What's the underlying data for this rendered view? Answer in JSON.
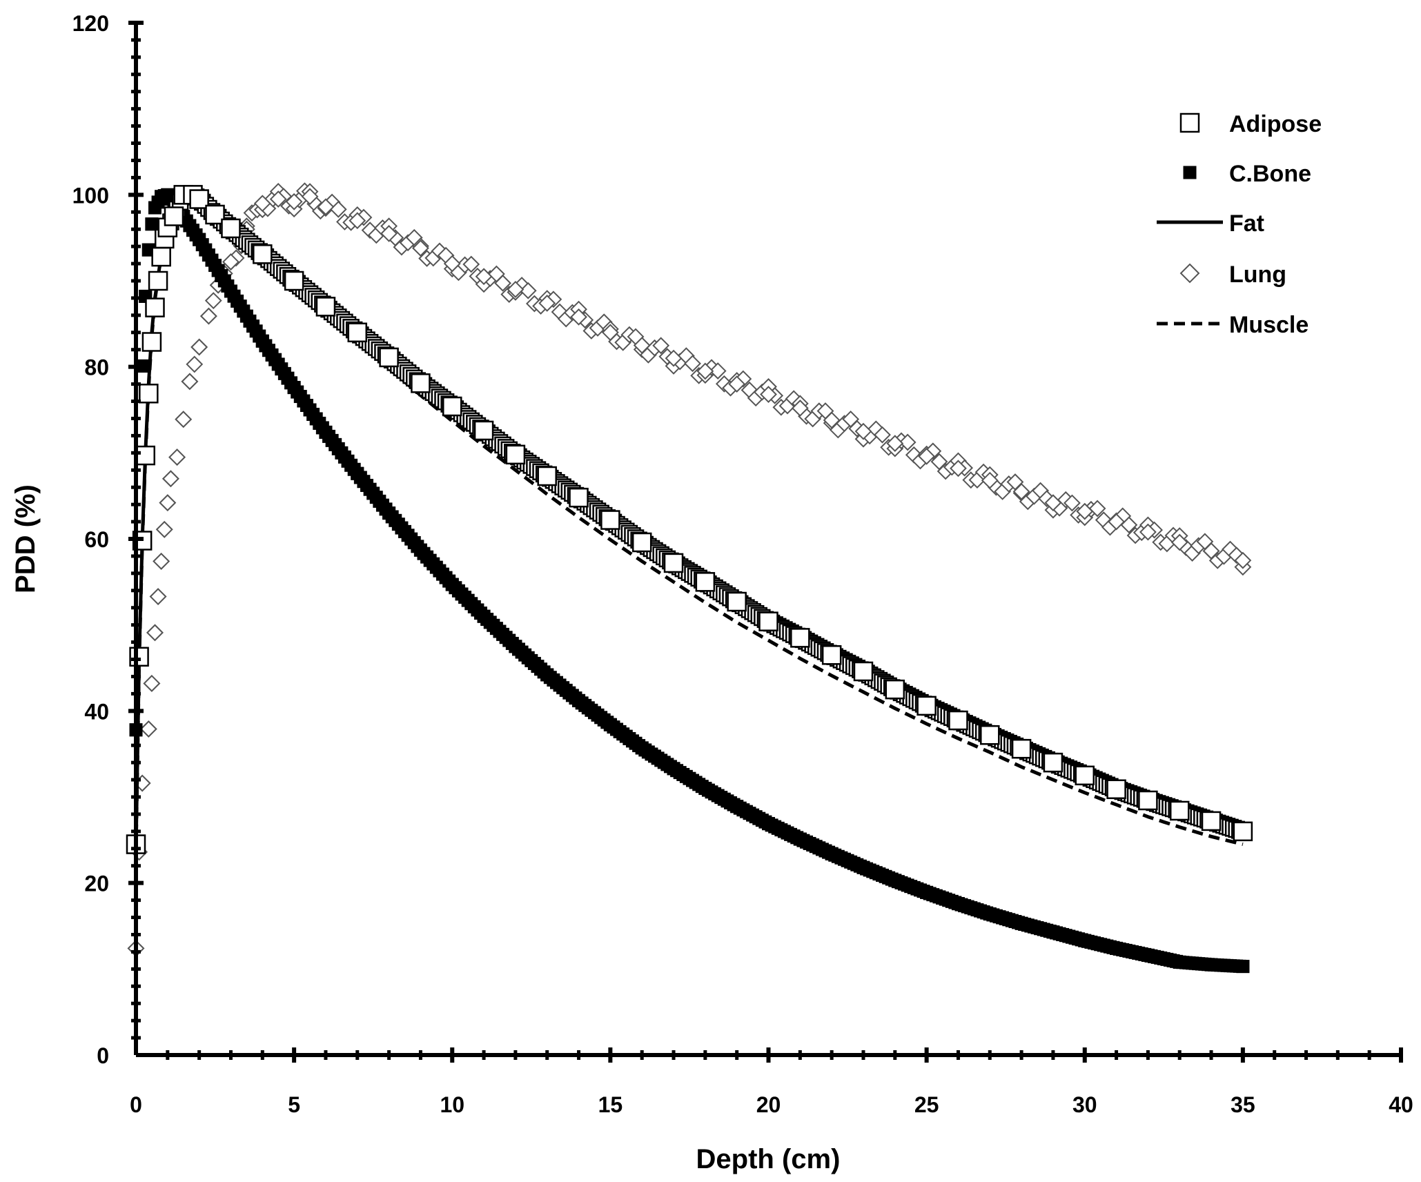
{
  "chart_data": {
    "type": "scatter",
    "title": "",
    "xlabel": "Depth (cm)",
    "ylabel": "PDD (%)",
    "xlim": [
      0,
      40
    ],
    "ylim": [
      0,
      120
    ],
    "xticks": [
      0,
      5,
      10,
      15,
      20,
      25,
      30,
      35,
      40
    ],
    "yticks": [
      0,
      20,
      40,
      60,
      80,
      100,
      120
    ],
    "legend_position": "top-right",
    "grid": false,
    "series": [
      {
        "name": "Adipose",
        "style": "open-square",
        "x": [
          0,
          0.1,
          0.2,
          0.3,
          0.4,
          0.5,
          0.6,
          0.7,
          0.8,
          0.9,
          1.0,
          1.2,
          1.5,
          1.8,
          2.0,
          2.5,
          3,
          4,
          5,
          6,
          7,
          8,
          9,
          10,
          11,
          12,
          13,
          14,
          15,
          16,
          17,
          18,
          19,
          20,
          21,
          22,
          23,
          24,
          25,
          26,
          27,
          28,
          29,
          30,
          31,
          32,
          33,
          34,
          35
        ],
        "y": [
          24.5,
          46.3,
          59.8,
          69.7,
          76.9,
          82.9,
          86.9,
          90.0,
          92.8,
          94.9,
          96.2,
          97.5,
          100.0,
          100.0,
          99.5,
          97.7,
          96.1,
          93.1,
          90.0,
          87.0,
          84.0,
          81.1,
          78.1,
          75.4,
          72.6,
          69.8,
          67.3,
          64.8,
          62.2,
          59.6,
          57.2,
          55.0,
          52.7,
          50.4,
          48.5,
          46.5,
          44.6,
          42.5,
          40.6,
          38.9,
          37.2,
          35.6,
          34.0,
          32.5,
          30.9,
          29.6,
          28.4,
          27.2,
          26.0
        ]
      },
      {
        "name": "C.Bone",
        "style": "filled-square",
        "x": [
          0,
          0.1,
          0.2,
          0.3,
          0.4,
          0.5,
          0.6,
          0.8,
          1.0,
          1.2,
          1.5,
          2,
          3,
          4,
          5,
          6,
          7,
          8,
          9,
          10,
          11,
          12,
          13,
          14,
          15,
          16,
          17,
          18,
          19,
          20,
          21,
          22,
          23,
          24,
          25,
          26,
          27,
          28,
          29,
          30,
          31,
          32,
          33,
          34,
          35
        ],
        "y": [
          37.8,
          60.1,
          80.1,
          88.2,
          93.6,
          96.6,
          98.5,
          99.8,
          100.0,
          99.0,
          97.5,
          94.8,
          88.8,
          83.0,
          77.6,
          72.4,
          67.6,
          63.0,
          58.7,
          54.7,
          51.0,
          47.5,
          44.2,
          41.2,
          38.4,
          35.7,
          33.3,
          31.0,
          28.9,
          26.9,
          25.1,
          23.4,
          21.8,
          20.3,
          18.9,
          17.6,
          16.4,
          15.3,
          14.3,
          13.3,
          12.4,
          11.6,
          10.8,
          10.5,
          10.3
        ]
      },
      {
        "name": "Fat",
        "style": "solid-line",
        "x": [
          0,
          0.1,
          0.2,
          0.3,
          0.4,
          0.5,
          0.6,
          0.8,
          1.0,
          1.3,
          1.6,
          2,
          3,
          4,
          5,
          6,
          7,
          8,
          9,
          10,
          11,
          12,
          13,
          14,
          15,
          16,
          17,
          18,
          19,
          20,
          21,
          22,
          23,
          24,
          25,
          26,
          27,
          28,
          29,
          30,
          31,
          32,
          33,
          34,
          35
        ],
        "y": [
          24.0,
          46.0,
          60.0,
          70.0,
          78.0,
          84.0,
          88.0,
          93.0,
          96.5,
          98.5,
          99.5,
          99.2,
          96.5,
          93.0,
          90.0,
          87.0,
          84.0,
          81.0,
          78.0,
          75.0,
          72.0,
          69.4,
          66.7,
          64.2,
          61.6,
          59.0,
          56.6,
          54.3,
          52.0,
          49.8,
          47.8,
          45.8,
          43.9,
          41.9,
          40.0,
          38.3,
          36.6,
          35.0,
          33.4,
          31.9,
          30.4,
          29.1,
          27.9,
          26.7,
          25.5
        ]
      },
      {
        "name": "Lung",
        "style": "open-diamond",
        "x": [
          0,
          0.1,
          0.2,
          0.4,
          0.5,
          0.6,
          0.7,
          0.8,
          0.9,
          1.0,
          1.1,
          1.3,
          1.5,
          1.7,
          2.0,
          2.3,
          2.6,
          3,
          3.5,
          4,
          4.5,
          5,
          5.5,
          6,
          7,
          8,
          9,
          10,
          11,
          12,
          13,
          14,
          15,
          16,
          17,
          18,
          19,
          20,
          21,
          22,
          23,
          24,
          25,
          26,
          27,
          28,
          29,
          30,
          31,
          32,
          33,
          34,
          35
        ],
        "y": [
          12.4,
          23.6,
          31.6,
          37.9,
          43.2,
          49.1,
          53.3,
          57.4,
          61.1,
          64.2,
          67.0,
          69.5,
          73.9,
          78.3,
          82.3,
          85.9,
          89.5,
          92.2,
          96.0,
          99.0,
          99.5,
          99.2,
          99.8,
          98.6,
          97.0,
          95.5,
          93.8,
          92.0,
          90.5,
          89.0,
          87.4,
          85.8,
          84.0,
          82.5,
          81.0,
          79.5,
          78.0,
          76.8,
          75.2,
          73.8,
          72.5,
          71.1,
          69.6,
          68.2,
          66.8,
          65.5,
          64.2,
          63.2,
          62.0,
          60.8,
          59.6,
          58.6,
          57.5
        ]
      },
      {
        "name": "Muscle",
        "style": "dashed-line",
        "x": [
          0,
          0.1,
          0.2,
          0.3,
          0.4,
          0.5,
          0.6,
          0.8,
          1.0,
          1.3,
          1.6,
          2,
          3,
          4,
          5,
          6,
          7,
          8,
          9,
          10,
          11,
          12,
          13,
          14,
          15,
          16,
          17,
          18,
          19,
          20,
          21,
          22,
          23,
          24,
          25,
          26,
          27,
          28,
          29,
          30,
          31,
          32,
          33,
          34,
          35
        ],
        "y": [
          23.5,
          45.5,
          59.5,
          69.5,
          77.5,
          83.5,
          87.8,
          93.0,
          96.5,
          98.8,
          99.8,
          99.0,
          96.0,
          92.5,
          89.3,
          86.0,
          83.0,
          79.8,
          76.7,
          73.7,
          70.8,
          68.0,
          65.2,
          62.5,
          59.9,
          57.4,
          55.0,
          52.6,
          50.3,
          48.2,
          46.1,
          44.1,
          42.2,
          40.3,
          38.5,
          36.8,
          35.2,
          33.5,
          32.0,
          30.5,
          29.1,
          27.7,
          26.5,
          25.4,
          24.5
        ]
      }
    ]
  }
}
